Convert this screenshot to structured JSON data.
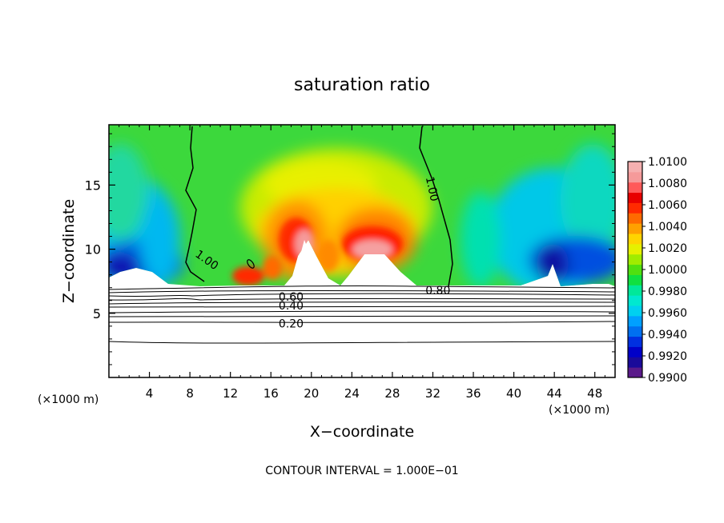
{
  "chart_data": {
    "type": "heatmap",
    "title": "saturation ratio",
    "xlabel": "X−coordinate",
    "ylabel": "Z−coordinate",
    "x_unit_left": "(×1000 m)",
    "x_unit_right": "(×1000 m)",
    "footer": "CONTOUR INTERVAL = 1.000E−01",
    "xlim": [
      0,
      50
    ],
    "ylim": [
      0,
      19.7
    ],
    "x_ticks": [
      4,
      8,
      12,
      16,
      20,
      24,
      28,
      32,
      36,
      40,
      44,
      48
    ],
    "y_ticks": [
      5,
      10,
      15
    ],
    "colorbar": {
      "min": 0.99,
      "max": 1.01,
      "labels": [
        "1.0100",
        "1.0080",
        "1.0060",
        "1.0040",
        "1.0020",
        "1.0000",
        "0.9980",
        "0.9960",
        "0.9940",
        "0.9920",
        "0.9900"
      ],
      "levels": [
        {
          "value": 0.99,
          "color": "#5a1a8a"
        },
        {
          "value": 0.991,
          "color": "#1a0a9a"
        },
        {
          "value": 0.992,
          "color": "#0000c8"
        },
        {
          "value": 0.993,
          "color": "#0030e0"
        },
        {
          "value": 0.994,
          "color": "#0070f0"
        },
        {
          "value": 0.995,
          "color": "#00a0ff"
        },
        {
          "value": 0.996,
          "color": "#00d0f0"
        },
        {
          "value": 0.997,
          "color": "#00e8d0"
        },
        {
          "value": 0.998,
          "color": "#00e89a"
        },
        {
          "value": 0.999,
          "color": "#10e040"
        },
        {
          "value": 1.0,
          "color": "#50e010"
        },
        {
          "value": 1.001,
          "color": "#a0ec00"
        },
        {
          "value": 1.002,
          "color": "#e6f000"
        },
        {
          "value": 1.003,
          "color": "#ffd400"
        },
        {
          "value": 1.004,
          "color": "#ffa000"
        },
        {
          "value": 1.005,
          "color": "#ff6a00"
        },
        {
          "value": 1.006,
          "color": "#ff2a00"
        },
        {
          "value": 1.007,
          "color": "#e80000"
        },
        {
          "value": 1.008,
          "color": "#ff5a5a"
        },
        {
          "value": 1.009,
          "color": "#f59a9a"
        },
        {
          "value": 1.01,
          "color": "#f5b0b0"
        }
      ]
    },
    "contour_labels": [
      {
        "text": "1.00",
        "x": 9.6,
        "z": 9.2
      },
      {
        "text": "1.00",
        "x": 31.8,
        "z": 14.8
      },
      {
        "text": "0.80",
        "x": 32.5,
        "z": 6.8
      },
      {
        "text": "0.60",
        "x": 18.0,
        "z": 6.3
      },
      {
        "text": "0.40",
        "x": 18.0,
        "z": 5.6
      },
      {
        "text": "0.20",
        "x": 18.0,
        "z": 4.2
      }
    ]
  }
}
